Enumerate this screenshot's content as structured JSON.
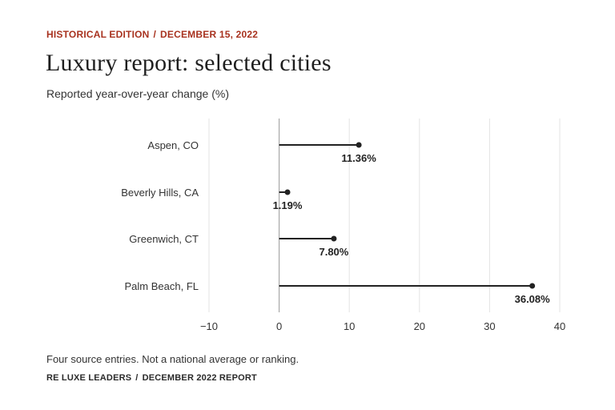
{
  "header": {
    "edition": "HISTORICAL EDITION",
    "date": "DECEMBER 15, 2022",
    "title": "Luxury report: selected cities",
    "subtitle": "Reported year-over-year change (%)"
  },
  "footer": {
    "note": "Four source entries. Not a national average or ranking.",
    "source": "RE LUXE LEADERS",
    "report": "DECEMBER 2022 REPORT"
  },
  "chart_data": {
    "type": "bar",
    "orientation": "horizontal",
    "style": "lollipop",
    "categories": [
      "Aspen, CO",
      "Beverly Hills, CA",
      "Greenwich, CT",
      "Palm Beach, FL"
    ],
    "values": [
      11.36,
      1.19,
      7.8,
      36.08
    ],
    "data_labels": [
      "11.36%",
      "1.19%",
      "7.80%",
      "36.08%"
    ],
    "xlim": [
      -10,
      40
    ],
    "xticks": [
      -10,
      0,
      10,
      20,
      30,
      40
    ],
    "grid": true,
    "colors": {
      "mark": "#222222",
      "grid": "#e3e3e3",
      "zero": "#9a9a9a"
    }
  }
}
